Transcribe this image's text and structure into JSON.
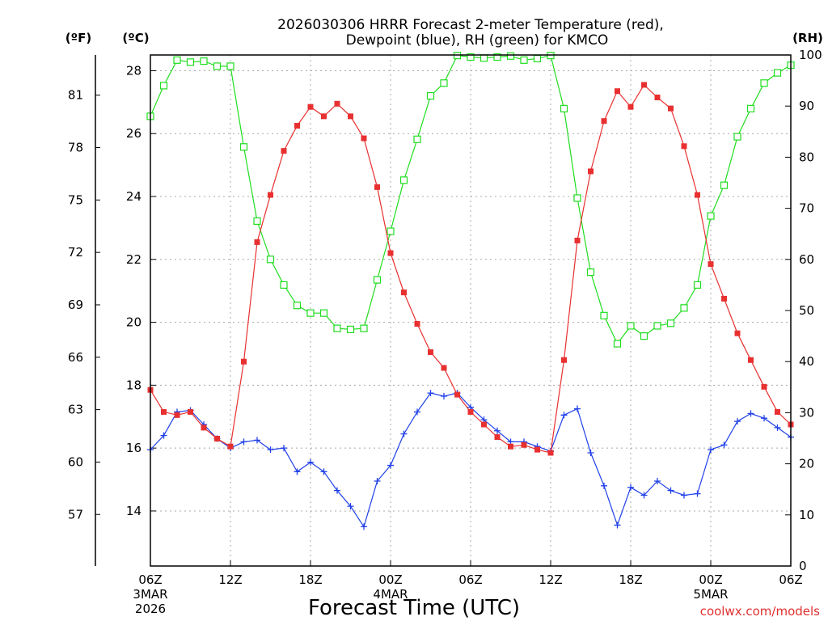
{
  "chart_data": {
    "type": "line",
    "title_line1": "2026030306 HRRR Forecast 2-meter Temperature (red),",
    "title_line2": "Dewpoint (blue), RH (green) for KMCO",
    "xlabel": "Forecast Time (UTC)",
    "credit": "coolwx.com/models",
    "units": {
      "fahrenheit": "(ºF)",
      "celsius": "(ºC)",
      "rh": "(RH)"
    },
    "celsius_axis": {
      "ylim": [
        12.25,
        28.5
      ],
      "ticks": [
        "14",
        "16",
        "18",
        "20",
        "22",
        "24",
        "26",
        "28"
      ]
    },
    "fahrenheit_axis": {
      "ticks": [
        "57",
        "60",
        "63",
        "66",
        "69",
        "72",
        "75",
        "78",
        "81"
      ]
    },
    "rh_axis": {
      "ylim": [
        0,
        100
      ],
      "ticks": [
        "0",
        "10",
        "20",
        "30",
        "40",
        "50",
        "60",
        "70",
        "80",
        "90",
        "100"
      ]
    },
    "x_axis": {
      "range_hours": [
        0,
        48
      ],
      "ticks": [
        {
          "hour": 0,
          "label": "06Z",
          "sub1": "3MAR",
          "sub2": "2026"
        },
        {
          "hour": 6,
          "label": "12Z",
          "sub1": "",
          "sub2": ""
        },
        {
          "hour": 12,
          "label": "18Z",
          "sub1": "",
          "sub2": ""
        },
        {
          "hour": 18,
          "label": "00Z",
          "sub1": "4MAR",
          "sub2": ""
        },
        {
          "hour": 24,
          "label": "06Z",
          "sub1": "",
          "sub2": ""
        },
        {
          "hour": 30,
          "label": "12Z",
          "sub1": "",
          "sub2": ""
        },
        {
          "hour": 36,
          "label": "18Z",
          "sub1": "",
          "sub2": ""
        },
        {
          "hour": 42,
          "label": "00Z",
          "sub1": "5MAR",
          "sub2": ""
        },
        {
          "hour": 48,
          "label": "06Z",
          "sub1": "",
          "sub2": ""
        }
      ]
    },
    "x_hours": [
      0,
      1,
      2,
      3,
      4,
      5,
      6,
      7,
      8,
      9,
      10,
      11,
      12,
      13,
      14,
      15,
      16,
      17,
      18,
      19,
      20,
      21,
      22,
      23,
      24,
      25,
      26,
      27,
      28,
      29,
      30,
      31,
      32,
      33,
      34,
      35,
      36,
      37,
      38,
      39,
      40,
      41,
      42,
      43,
      44,
      45,
      46,
      47,
      48
    ],
    "series": [
      {
        "name": "Temperature",
        "unit": "C",
        "color": "#e83030",
        "marker": "filled-square",
        "values": [
          17.85,
          17.15,
          17.05,
          17.15,
          16.65,
          16.3,
          16.05,
          18.75,
          22.55,
          24.05,
          25.45,
          26.25,
          26.85,
          26.55,
          26.95,
          26.55,
          25.85,
          24.3,
          22.2,
          20.95,
          19.95,
          19.05,
          18.55,
          17.7,
          17.15,
          16.75,
          16.35,
          16.05,
          16.1,
          15.95,
          15.85,
          18.8,
          22.6,
          24.8,
          26.4,
          27.35,
          26.85,
          27.55,
          27.15,
          26.8,
          25.6,
          24.05,
          21.85,
          20.75,
          19.65,
          18.8,
          17.95,
          17.15,
          16.75
        ]
      },
      {
        "name": "Dewpoint",
        "unit": "C",
        "color": "#2040e8",
        "marker": "plus",
        "values": [
          15.95,
          16.4,
          17.15,
          17.2,
          16.75,
          16.3,
          16,
          16.2,
          16.25,
          15.95,
          16,
          15.25,
          15.55,
          15.25,
          14.65,
          14.15,
          13.5,
          14.95,
          15.45,
          16.45,
          17.15,
          17.75,
          17.65,
          17.75,
          17.3,
          16.9,
          16.55,
          16.2,
          16.2,
          16.05,
          15.9,
          17.05,
          17.25,
          15.85,
          14.8,
          13.55,
          14.75,
          14.5,
          14.95,
          14.65,
          14.5,
          14.55,
          15.95,
          16.1,
          16.85,
          17.1,
          16.95,
          16.65,
          16.35
        ]
      },
      {
        "name": "Relative Humidity",
        "unit": "%",
        "color": "#20dd20",
        "marker": "open-square",
        "values": [
          88,
          94,
          99,
          98.6,
          98.8,
          97.8,
          97.8,
          82,
          67.5,
          60,
          55,
          51,
          49.5,
          49.5,
          46.5,
          46.3,
          46.5,
          56,
          65.5,
          75.5,
          83.5,
          92,
          94.5,
          99.9,
          99.6,
          99.4,
          99.6,
          99.8,
          99,
          99.3,
          99.9,
          89.5,
          72,
          57.5,
          49,
          43.5,
          47,
          45,
          47,
          47.5,
          50.5,
          55,
          68.5,
          74.5,
          84,
          89.5,
          94.5,
          96.5,
          98
        ]
      }
    ]
  }
}
